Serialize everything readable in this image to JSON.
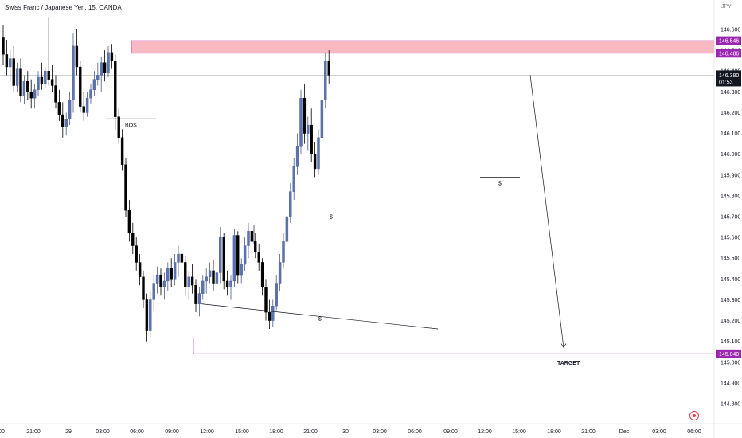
{
  "header": {
    "title": "Swiss Franc / Japanese Yen, 15, OANDA",
    "currency": "JPY"
  },
  "chart_data": {
    "type": "candlestick",
    "title": "Swiss Franc / Japanese Yen, 15, OANDA",
    "ylabel": "JPY",
    "ylim": [
      144.72,
      146.69
    ],
    "y_ticks": [
      146.6,
      146.5,
      146.4,
      146.3,
      146.2,
      146.1,
      146.0,
      145.9,
      145.8,
      145.7,
      145.6,
      145.5,
      145.4,
      145.3,
      145.2,
      145.1,
      145.0,
      144.9,
      144.8
    ],
    "x_ticks": [
      "00",
      "21:00",
      "29",
      "03:00",
      "06:00",
      "09:00",
      "12:00",
      "15:00",
      "18:00",
      "21:00",
      "30",
      "03:00",
      "06:00",
      "09:00",
      "12:00",
      "15:00",
      "18:00",
      "21:00",
      "Dec",
      "03:00",
      "06:00"
    ],
    "price_labels": {
      "zone_top": 146.546,
      "zone_bottom": 146.486,
      "current": 146.38,
      "countdown": "01:53",
      "target": 145.04
    },
    "annotations": {
      "bos": "BOS",
      "liquidity_top": "$",
      "liquidity_bottom": "$",
      "liquidity_right": "$",
      "target": "TARGET"
    },
    "candles": [
      [
        146.56,
        146.62,
        146.43,
        146.48
      ],
      [
        146.48,
        146.55,
        146.38,
        146.42
      ],
      [
        146.42,
        146.5,
        146.35,
        146.46
      ],
      [
        146.46,
        146.52,
        146.3,
        146.33
      ],
      [
        146.33,
        146.44,
        146.3,
        146.41
      ],
      [
        146.41,
        146.46,
        146.25,
        146.28
      ],
      [
        146.28,
        146.38,
        146.24,
        146.35
      ],
      [
        146.35,
        146.4,
        146.26,
        146.3
      ],
      [
        146.3,
        146.36,
        146.22,
        146.27
      ],
      [
        146.27,
        146.34,
        146.22,
        146.31
      ],
      [
        146.31,
        146.4,
        146.28,
        146.37
      ],
      [
        146.37,
        146.44,
        146.31,
        146.34
      ],
      [
        146.34,
        146.42,
        146.32,
        146.4
      ],
      [
        146.4,
        146.66,
        146.33,
        146.36
      ],
      [
        146.36,
        146.43,
        146.3,
        146.33
      ],
      [
        146.33,
        146.38,
        146.22,
        146.25
      ],
      [
        146.25,
        146.31,
        146.16,
        146.19
      ],
      [
        146.19,
        146.25,
        146.08,
        146.13
      ],
      [
        146.13,
        146.2,
        146.09,
        146.17
      ],
      [
        146.17,
        146.3,
        146.14,
        146.26
      ],
      [
        146.26,
        146.58,
        146.2,
        146.52
      ],
      [
        146.52,
        146.6,
        146.38,
        146.42
      ],
      [
        146.42,
        146.45,
        146.2,
        146.23
      ],
      [
        146.23,
        146.3,
        146.16,
        146.2
      ],
      [
        146.2,
        146.3,
        146.18,
        146.27
      ],
      [
        146.27,
        146.34,
        146.24,
        146.31
      ],
      [
        146.31,
        146.4,
        146.28,
        146.36
      ],
      [
        146.36,
        146.44,
        146.33,
        146.38
      ],
      [
        146.38,
        146.47,
        146.3,
        146.44
      ],
      [
        146.44,
        146.5,
        146.35,
        146.39
      ],
      [
        146.39,
        146.52,
        146.37,
        146.49
      ],
      [
        146.49,
        146.53,
        146.41,
        146.45
      ],
      [
        146.45,
        146.48,
        146.12,
        146.18
      ],
      [
        146.18,
        146.22,
        146.05,
        146.08
      ],
      [
        146.08,
        146.12,
        145.92,
        145.95
      ],
      [
        145.95,
        145.98,
        145.7,
        145.73
      ],
      [
        145.73,
        145.78,
        145.58,
        145.62
      ],
      [
        145.62,
        145.67,
        145.52,
        145.56
      ],
      [
        145.56,
        145.6,
        145.44,
        145.48
      ],
      [
        145.48,
        145.52,
        145.37,
        145.41
      ],
      [
        145.41,
        145.44,
        145.26,
        145.3
      ],
      [
        145.3,
        145.33,
        145.1,
        145.15
      ],
      [
        145.15,
        145.34,
        145.12,
        145.3
      ],
      [
        145.3,
        145.42,
        145.25,
        145.38
      ],
      [
        145.38,
        145.46,
        145.33,
        145.42
      ],
      [
        145.42,
        145.45,
        145.32,
        145.36
      ],
      [
        145.36,
        145.43,
        145.3,
        145.39
      ],
      [
        145.39,
        145.48,
        145.34,
        145.45
      ],
      [
        145.45,
        145.5,
        145.36,
        145.4
      ],
      [
        145.4,
        145.52,
        145.37,
        145.48
      ],
      [
        145.48,
        145.56,
        145.41,
        145.52
      ],
      [
        145.52,
        145.6,
        145.45,
        145.48
      ],
      [
        145.48,
        145.51,
        145.32,
        145.36
      ],
      [
        145.36,
        145.44,
        145.3,
        145.41
      ],
      [
        145.41,
        145.47,
        145.33,
        145.37
      ],
      [
        145.37,
        145.4,
        145.24,
        145.28
      ],
      [
        145.28,
        145.36,
        145.22,
        145.33
      ],
      [
        145.33,
        145.42,
        145.3,
        145.39
      ],
      [
        145.39,
        145.45,
        145.33,
        145.41
      ],
      [
        145.41,
        145.48,
        145.38,
        145.44
      ],
      [
        145.44,
        145.49,
        145.34,
        145.38
      ],
      [
        145.38,
        145.46,
        145.35,
        145.43
      ],
      [
        145.43,
        145.65,
        145.38,
        145.6
      ],
      [
        145.6,
        145.62,
        145.35,
        145.39
      ],
      [
        145.39,
        145.44,
        145.32,
        145.36
      ],
      [
        145.36,
        145.42,
        145.3,
        145.39
      ],
      [
        145.39,
        145.64,
        145.36,
        145.61
      ],
      [
        145.61,
        145.63,
        145.38,
        145.42
      ],
      [
        145.42,
        145.5,
        145.38,
        145.47
      ],
      [
        145.47,
        145.6,
        145.44,
        145.56
      ],
      [
        145.56,
        145.67,
        145.5,
        145.63
      ],
      [
        145.63,
        145.66,
        145.54,
        145.58
      ],
      [
        145.58,
        145.62,
        145.5,
        145.53
      ],
      [
        145.53,
        145.57,
        145.44,
        145.48
      ],
      [
        145.48,
        145.5,
        145.32,
        145.36
      ],
      [
        145.36,
        145.4,
        145.2,
        145.24
      ],
      [
        145.24,
        145.3,
        145.16,
        145.2
      ],
      [
        145.2,
        145.3,
        145.17,
        145.27
      ],
      [
        145.27,
        145.42,
        145.25,
        145.38
      ],
      [
        145.38,
        145.52,
        145.34,
        145.48
      ],
      [
        145.48,
        145.62,
        145.45,
        145.58
      ],
      [
        145.58,
        145.74,
        145.55,
        145.7
      ],
      [
        145.7,
        145.86,
        145.67,
        145.82
      ],
      [
        145.82,
        145.98,
        145.78,
        145.94
      ],
      [
        145.94,
        146.1,
        145.9,
        146.04
      ],
      [
        146.04,
        146.31,
        146.0,
        146.27
      ],
      [
        146.27,
        146.34,
        146.05,
        146.1
      ],
      [
        146.1,
        146.18,
        146.02,
        146.14
      ],
      [
        146.14,
        146.22,
        145.96,
        146.0
      ],
      [
        146.0,
        146.06,
        145.89,
        145.93
      ],
      [
        145.93,
        146.12,
        145.9,
        146.08
      ],
      [
        146.08,
        146.3,
        146.05,
        146.26
      ],
      [
        146.26,
        146.49,
        146.22,
        146.45
      ],
      [
        146.45,
        146.5,
        146.34,
        146.38
      ]
    ]
  }
}
